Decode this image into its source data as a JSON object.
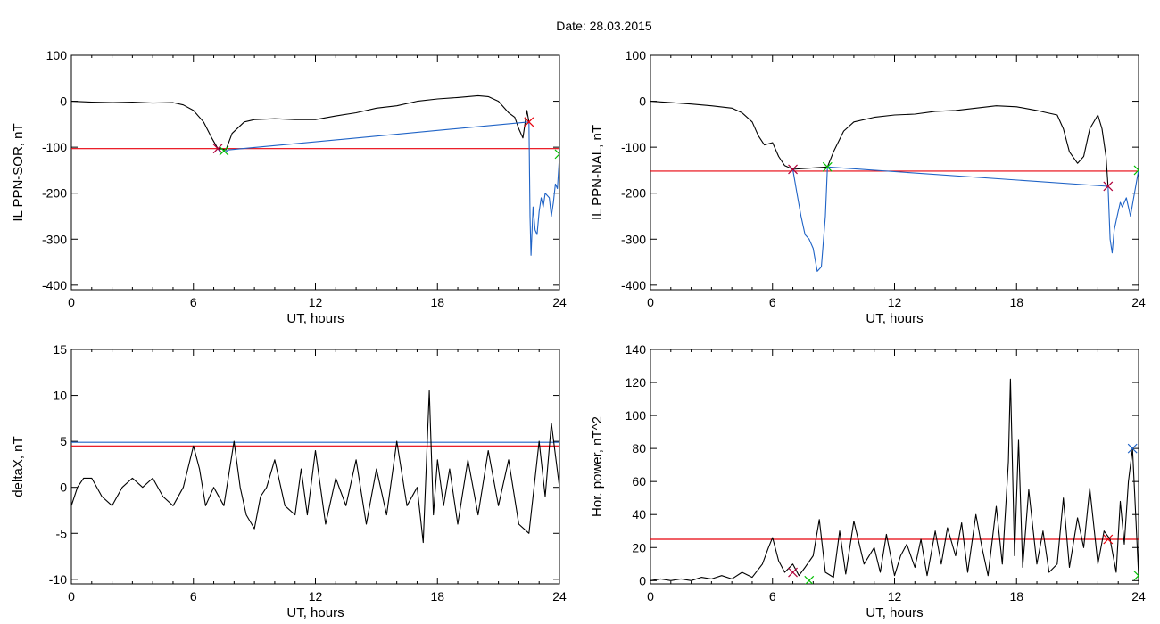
{
  "figure": {
    "title": "Date:  28.03.2015"
  },
  "chart_data": [
    {
      "type": "line",
      "panel": "top-left",
      "xlabel": "UT, hours",
      "ylabel": "IL PPN-SOR, nT",
      "xlim": [
        0,
        24
      ],
      "ylim": [
        -410,
        100
      ],
      "xticks": [
        "0",
        "6",
        "12",
        "18",
        "24"
      ],
      "yticks": [
        "100",
        "0",
        "-100",
        "-200",
        "-300",
        "-400"
      ],
      "grid": false,
      "threshold": {
        "y": -103,
        "color": "#e8000b"
      },
      "series": [
        {
          "color": "#000000",
          "x": [
            0,
            1,
            2,
            3,
            4,
            5,
            5.5,
            6,
            6.5,
            6.9,
            7.2,
            7.4,
            7.6,
            7.9,
            8.5,
            9,
            10,
            11,
            12,
            13,
            14,
            15,
            16,
            17,
            18,
            19,
            19.5,
            20,
            20.5,
            21,
            21.5,
            21.8,
            22,
            22.2,
            22.4,
            22.5
          ],
          "y": [
            0,
            -2,
            -3,
            -2,
            -4,
            -3,
            -8,
            -20,
            -45,
            -80,
            -103,
            -104,
            -106,
            -70,
            -45,
            -40,
            -38,
            -40,
            -40,
            -32,
            -25,
            -15,
            -10,
            0,
            5,
            8,
            10,
            12,
            10,
            0,
            -25,
            -35,
            -60,
            -80,
            -20,
            -45
          ]
        },
        {
          "color": "#1f63c6",
          "x": [
            7.2,
            7.3,
            7.4,
            7.5,
            7.6,
            7.7,
            22.5,
            22.55,
            22.6,
            22.7,
            22.8,
            22.9,
            23,
            23.1,
            23.2,
            23.3,
            23.5,
            23.6,
            23.7,
            23.8,
            23.9,
            24
          ],
          "y": [
            -103,
            -110,
            -112,
            -108,
            -110,
            -106,
            -45,
            -250,
            -335,
            -230,
            -280,
            -290,
            -240,
            -210,
            -230,
            -200,
            -210,
            -250,
            -220,
            -180,
            -190,
            -120
          ]
        }
      ],
      "markers": [
        {
          "x": 7.2,
          "y": -103,
          "color": "#b0003a"
        },
        {
          "x": 7.5,
          "y": -108,
          "color": "#00c000"
        },
        {
          "x": 22.5,
          "y": -45,
          "color": "#e8000b"
        },
        {
          "x": 24,
          "y": -115,
          "color": "#00c000"
        }
      ]
    },
    {
      "type": "line",
      "panel": "top-right",
      "xlabel": "UT, hours",
      "ylabel": "IL PPN-NAL, nT",
      "xlim": [
        0,
        24
      ],
      "ylim": [
        -410,
        100
      ],
      "xticks": [
        "0",
        "6",
        "12",
        "18",
        "24"
      ],
      "yticks": [
        "100",
        "0",
        "-100",
        "-200",
        "-300",
        "-400"
      ],
      "grid": false,
      "threshold": {
        "y": -152,
        "color": "#e8000b"
      },
      "series": [
        {
          "color": "#000000",
          "x": [
            0,
            1,
            2,
            3,
            4,
            4.5,
            5,
            5.3,
            5.6,
            6,
            6.3,
            6.6,
            7,
            8.7,
            9,
            9.5,
            10,
            11,
            12,
            13,
            14,
            15,
            16,
            17,
            18,
            19,
            19.5,
            20,
            20.3,
            20.6,
            21,
            21.3,
            21.6,
            22,
            22.2,
            22.4,
            22.5
          ],
          "y": [
            0,
            -3,
            -6,
            -10,
            -15,
            -25,
            -45,
            -75,
            -95,
            -90,
            -120,
            -140,
            -148,
            -143,
            -110,
            -65,
            -45,
            -35,
            -30,
            -28,
            -22,
            -20,
            -15,
            -10,
            -12,
            -20,
            -25,
            -30,
            -60,
            -110,
            -135,
            -120,
            -60,
            -30,
            -60,
            -120,
            -185
          ]
        },
        {
          "color": "#1f63c6",
          "x": [
            7,
            7.2,
            7.4,
            7.6,
            7.8,
            8,
            8.2,
            8.4,
            8.6,
            8.7,
            22.5,
            22.6,
            22.7,
            22.8,
            22.9,
            23,
            23.1,
            23.2,
            23.4,
            23.6,
            23.8,
            24
          ],
          "y": [
            -148,
            -200,
            -250,
            -290,
            -300,
            -320,
            -370,
            -360,
            -250,
            -143,
            -185,
            -300,
            -330,
            -280,
            -260,
            -240,
            -220,
            -230,
            -210,
            -250,
            -200,
            -150
          ]
        }
      ],
      "markers": [
        {
          "x": 7,
          "y": -148,
          "color": "#b0003a"
        },
        {
          "x": 8.7,
          "y": -143,
          "color": "#00c000"
        },
        {
          "x": 22.5,
          "y": -185,
          "color": "#b0003a"
        },
        {
          "x": 24,
          "y": -150,
          "color": "#00c000"
        }
      ]
    },
    {
      "type": "line",
      "panel": "bottom-left",
      "xlabel": "UT, hours",
      "ylabel": "deltaX, nT",
      "xlim": [
        0,
        24
      ],
      "ylim": [
        -10.5,
        15
      ],
      "xticks": [
        "0",
        "6",
        "12",
        "18",
        "24"
      ],
      "yticks": [
        "15",
        "10",
        "5",
        "0",
        "-5",
        "-10"
      ],
      "grid": false,
      "hlines": [
        {
          "y": 4.9,
          "color": "#1f63c6"
        },
        {
          "y": 4.5,
          "color": "#e8000b"
        }
      ],
      "series": [
        {
          "color": "#000000",
          "x": [
            0,
            0.3,
            0.6,
            1,
            1.5,
            2,
            2.5,
            3,
            3.5,
            4,
            4.5,
            5,
            5.5,
            6,
            6.3,
            6.6,
            7,
            7.5,
            8,
            8.3,
            8.6,
            9,
            9.3,
            9.6,
            10,
            10.5,
            11,
            11.3,
            11.6,
            12,
            12.5,
            13,
            13.5,
            14,
            14.5,
            15,
            15.5,
            16,
            16.5,
            17,
            17.3,
            17.6,
            17.8,
            18,
            18.3,
            18.6,
            19,
            19.5,
            20,
            20.5,
            21,
            21.5,
            22,
            22.5,
            23,
            23.3,
            23.6,
            24
          ],
          "y": [
            -2,
            0,
            1,
            1,
            -1,
            -2,
            0,
            1,
            0,
            1,
            -1,
            -2,
            0,
            4.5,
            2,
            -2,
            0,
            -2,
            5,
            0,
            -3,
            -4.5,
            -1,
            0,
            3,
            -2,
            -3,
            2,
            -3,
            4,
            -4,
            1,
            -2,
            3,
            -4,
            2,
            -3,
            5,
            -2,
            0,
            -6,
            10.5,
            -3,
            3,
            -2,
            2,
            -4,
            3,
            -3,
            4,
            -2,
            3,
            -4,
            -5,
            5,
            -1,
            7,
            0
          ]
        }
      ]
    },
    {
      "type": "line",
      "panel": "bottom-right",
      "xlabel": "UT, hours",
      "ylabel": "Hor. power, nT^2",
      "xlim": [
        0,
        24
      ],
      "ylim": [
        -2,
        140
      ],
      "xticks": [
        "0",
        "6",
        "12",
        "18",
        "24"
      ],
      "yticks": [
        "140",
        "120",
        "100",
        "80",
        "60",
        "40",
        "20",
        "0"
      ],
      "grid": false,
      "threshold": {
        "y": 25,
        "color": "#e8000b"
      },
      "series": [
        {
          "color": "#000000",
          "x": [
            0,
            0.5,
            1,
            1.5,
            2,
            2.5,
            3,
            3.5,
            4,
            4.5,
            5,
            5.5,
            5.8,
            6,
            6.3,
            6.6,
            7,
            7.3,
            7.6,
            8,
            8.3,
            8.6,
            9,
            9.3,
            9.6,
            10,
            10.5,
            11,
            11.3,
            11.6,
            12,
            12.3,
            12.6,
            13,
            13.3,
            13.6,
            14,
            14.3,
            14.6,
            15,
            15.3,
            15.6,
            16,
            16.3,
            16.6,
            17,
            17.3,
            17.6,
            17.7,
            17.9,
            18.1,
            18.3,
            18.6,
            19,
            19.3,
            19.6,
            20,
            20.3,
            20.6,
            21,
            21.3,
            21.6,
            22,
            22.3,
            22.6,
            22.9,
            23.1,
            23.3,
            23.5,
            23.7,
            24
          ],
          "y": [
            0,
            1,
            0,
            1,
            0,
            2,
            1,
            3,
            1,
            5,
            2,
            10,
            20,
            26,
            12,
            5,
            10,
            3,
            8,
            15,
            37,
            5,
            2,
            30,
            4,
            36,
            10,
            20,
            5,
            28,
            3,
            15,
            22,
            8,
            25,
            3,
            30,
            10,
            32,
            15,
            35,
            5,
            40,
            20,
            3,
            45,
            10,
            72,
            122,
            15,
            85,
            8,
            55,
            10,
            30,
            5,
            10,
            50,
            8,
            38,
            20,
            56,
            10,
            30,
            25,
            5,
            48,
            22,
            60,
            80,
            3
          ]
        }
      ],
      "markers": [
        {
          "x": 7,
          "y": 5,
          "color": "#b0003a"
        },
        {
          "x": 7.8,
          "y": 0,
          "color": "#00c000"
        },
        {
          "x": 22.5,
          "y": 25,
          "color": "#e8000b"
        },
        {
          "x": 23.7,
          "y": 80,
          "color": "#1f63c6"
        },
        {
          "x": 24,
          "y": 3,
          "color": "#00c000"
        }
      ]
    }
  ]
}
